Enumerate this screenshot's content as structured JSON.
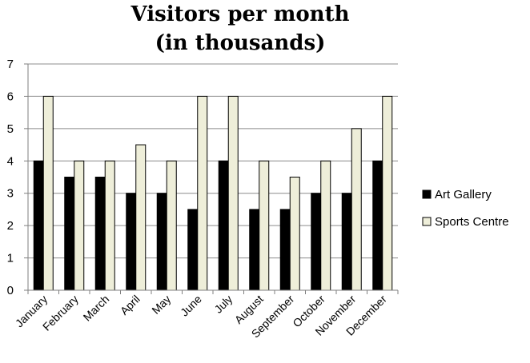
{
  "chart_data": {
    "type": "bar",
    "title_lines": [
      "Visitors per month",
      "(in thousands)"
    ],
    "xlabel": "",
    "ylabel": "",
    "categories": [
      "January",
      "February",
      "March",
      "April",
      "May",
      "June",
      "July",
      "August",
      "September",
      "October",
      "November",
      "December"
    ],
    "series": [
      {
        "name": "Art Gallery",
        "color": "#000000",
        "values": [
          4,
          3.5,
          3.5,
          3,
          3,
          2.5,
          4,
          2.5,
          2.5,
          3,
          3,
          4
        ]
      },
      {
        "name": "Sports Centre",
        "color": "#eeeed9",
        "values": [
          6,
          4,
          4,
          4.5,
          4,
          6,
          6,
          4,
          3.5,
          4,
          5,
          6
        ]
      }
    ],
    "ylim": [
      0,
      7
    ],
    "yticks": [
      "0",
      "1",
      "2",
      "3",
      "4",
      "5",
      "6",
      "7"
    ],
    "grid": true,
    "legend_position": "right"
  }
}
